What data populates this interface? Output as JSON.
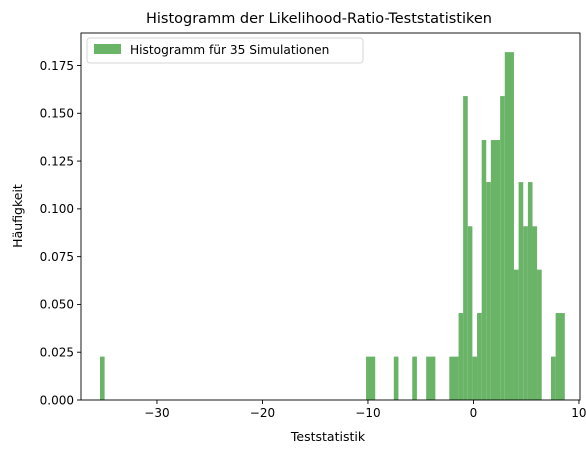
{
  "chart_data": {
    "type": "bar",
    "title": "Histogramm der Likelihood-Ratio-Teststatistiken",
    "xlabel": "Teststatistik",
    "ylabel": "Häufigkeit",
    "xlim": [
      -37.2,
      10.1
    ],
    "ylim": [
      0,
      0.192
    ],
    "xticks": [
      -30,
      -20,
      -10,
      0
    ],
    "xtick_labels": [
      "−30",
      "−20",
      "−10",
      "0"
    ],
    "xtick_extra": {
      "value": 10,
      "label": "10"
    },
    "yticks": [
      0.0,
      0.025,
      0.05,
      0.075,
      0.1,
      0.125,
      0.15,
      0.175
    ],
    "ytick_labels": [
      "0.000",
      "0.025",
      "0.050",
      "0.075",
      "0.100",
      "0.125",
      "0.150",
      "0.175"
    ],
    "grid": false,
    "legend_position": "top-left",
    "color": "#6ab468",
    "series": [
      {
        "name": "Histogramm für 35 Simulationen",
        "bins": [
          {
            "x0": -35.4,
            "x1": -34.96,
            "y": 0.0227
          },
          {
            "x0": -10.18,
            "x1": -9.31,
            "y": 0.0227
          },
          {
            "x0": -7.55,
            "x1": -7.11,
            "y": 0.0227
          },
          {
            "x0": -5.8,
            "x1": -5.36,
            "y": 0.0227
          },
          {
            "x0": -4.48,
            "x1": -3.61,
            "y": 0.0227
          },
          {
            "x0": -2.29,
            "x1": -1.41,
            "y": 0.0227
          },
          {
            "x0": -1.41,
            "x1": -0.98,
            "y": 0.0455
          },
          {
            "x0": -0.98,
            "x1": -0.54,
            "y": 0.159
          },
          {
            "x0": -0.54,
            "x1": -0.1,
            "y": 0.0909
          },
          {
            "x0": -0.1,
            "x1": 0.34,
            "y": 0.0227
          },
          {
            "x0": 0.34,
            "x1": 0.78,
            "y": 0.0455
          },
          {
            "x0": 0.78,
            "x1": 1.21,
            "y": 0.136
          },
          {
            "x0": 1.21,
            "x1": 1.65,
            "y": 0.114
          },
          {
            "x0": 1.65,
            "x1": 2.53,
            "y": 0.136
          },
          {
            "x0": 2.53,
            "x1": 2.97,
            "y": 0.159
          },
          {
            "x0": 2.97,
            "x1": 3.84,
            "y": 0.182
          },
          {
            "x0": 3.84,
            "x1": 4.28,
            "y": 0.0682
          },
          {
            "x0": 4.28,
            "x1": 4.72,
            "y": 0.114
          },
          {
            "x0": 4.72,
            "x1": 5.16,
            "y": 0.0909
          },
          {
            "x0": 5.16,
            "x1": 5.6,
            "y": 0.114
          },
          {
            "x0": 5.6,
            "x1": 6.03,
            "y": 0.0909
          },
          {
            "x0": 6.03,
            "x1": 6.47,
            "y": 0.0682
          },
          {
            "x0": 7.35,
            "x1": 7.79,
            "y": 0.0227
          },
          {
            "x0": 7.79,
            "x1": 8.66,
            "y": 0.0455
          }
        ]
      }
    ]
  }
}
